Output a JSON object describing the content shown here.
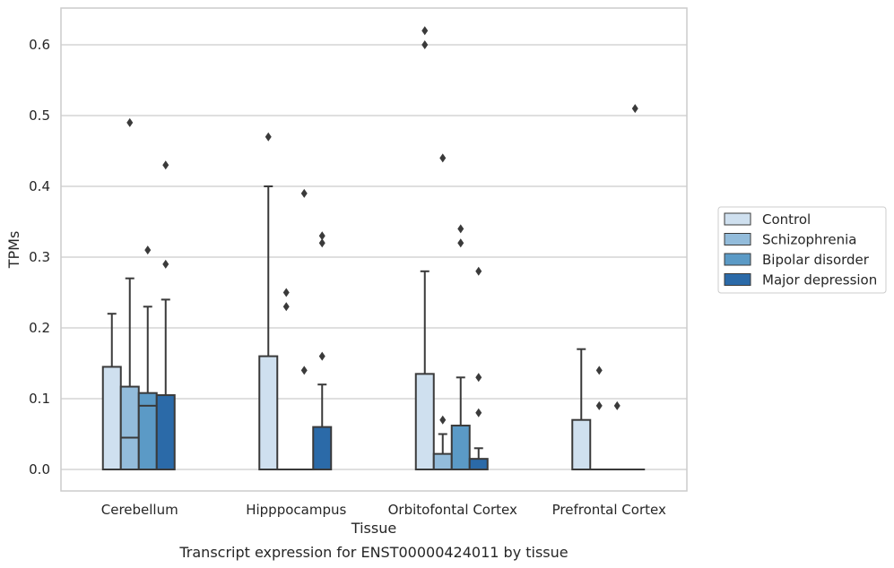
{
  "chart_data": {
    "type": "box",
    "xlabel": "Tissue",
    "ylabel": "TPMs",
    "caption": "Transcript expression for ENST00000424011 by tissue",
    "ylim": [
      -0.03,
      0.65
    ],
    "yticks": [
      "0.0",
      "0.1",
      "0.2",
      "0.3",
      "0.4",
      "0.5",
      "0.6"
    ],
    "ytick_values": [
      0,
      0.1,
      0.2,
      0.3,
      0.4,
      0.5,
      0.6
    ],
    "grid": "horizontal",
    "legend_position": "right",
    "categories": [
      "Cerebellum",
      "Hipppocampus",
      "Orbitofontal Cortex",
      "Prefrontal Cortex"
    ],
    "series": [
      {
        "name": "Control",
        "color": "#cfe0ef",
        "boxes": [
          {
            "q1": 0,
            "median": 0,
            "q3": 0.145,
            "whislo": 0,
            "whishi": 0.22,
            "fliers": []
          },
          {
            "q1": 0,
            "median": 0,
            "q3": 0.16,
            "whislo": 0,
            "whishi": 0.4,
            "fliers": [
              0.47
            ]
          },
          {
            "q1": 0,
            "median": 0,
            "q3": 0.135,
            "whislo": 0,
            "whishi": 0.28,
            "fliers": [
              0.6,
              0.62
            ]
          },
          {
            "q1": 0,
            "median": 0,
            "q3": 0.07,
            "whislo": 0,
            "whishi": 0.17,
            "fliers": []
          }
        ]
      },
      {
        "name": "Schizophrenia",
        "color": "#93bcdb",
        "boxes": [
          {
            "q1": 0,
            "median": 0.045,
            "q3": 0.117,
            "whislo": 0,
            "whishi": 0.27,
            "fliers": [
              0.49
            ]
          },
          {
            "q1": 0,
            "median": 0,
            "q3": 0,
            "whislo": 0,
            "whishi": 0,
            "fliers": [
              0.23,
              0.25
            ]
          },
          {
            "q1": 0,
            "median": 0,
            "q3": 0.022,
            "whislo": 0,
            "whishi": 0.05,
            "fliers": [
              0.07,
              0.44
            ]
          },
          {
            "q1": 0,
            "median": 0,
            "q3": 0,
            "whislo": 0,
            "whishi": 0,
            "fliers": [
              0.09,
              0.14
            ]
          }
        ]
      },
      {
        "name": "Bipolar disorder",
        "color": "#5b9ac6",
        "boxes": [
          {
            "q1": 0,
            "median": 0.09,
            "q3": 0.108,
            "whislo": 0,
            "whishi": 0.23,
            "fliers": [
              0.31
            ]
          },
          {
            "q1": 0,
            "median": 0,
            "q3": 0,
            "whislo": 0,
            "whishi": 0,
            "fliers": [
              0.14,
              0.39
            ]
          },
          {
            "q1": 0,
            "median": 0,
            "q3": 0.062,
            "whislo": 0,
            "whishi": 0.13,
            "fliers": [
              0.32,
              0.34
            ]
          },
          {
            "q1": 0,
            "median": 0,
            "q3": 0,
            "whislo": 0,
            "whishi": 0,
            "fliers": [
              0.09
            ]
          }
        ]
      },
      {
        "name": "Major depression",
        "color": "#2b6aa8",
        "boxes": [
          {
            "q1": 0,
            "median": 0,
            "q3": 0.105,
            "whislo": 0,
            "whishi": 0.24,
            "fliers": [
              0.29,
              0.43
            ]
          },
          {
            "q1": 0,
            "median": 0,
            "q3": 0.06,
            "whislo": 0,
            "whishi": 0.12,
            "fliers": [
              0.16,
              0.32,
              0.33
            ]
          },
          {
            "q1": 0,
            "median": 0,
            "q3": 0.015,
            "whislo": 0,
            "whishi": 0.03,
            "fliers": [
              0.08,
              0.13,
              0.28
            ]
          },
          {
            "q1": 0,
            "median": 0,
            "q3": 0,
            "whislo": 0,
            "whishi": 0,
            "fliers": [
              0.51
            ]
          }
        ]
      }
    ]
  }
}
